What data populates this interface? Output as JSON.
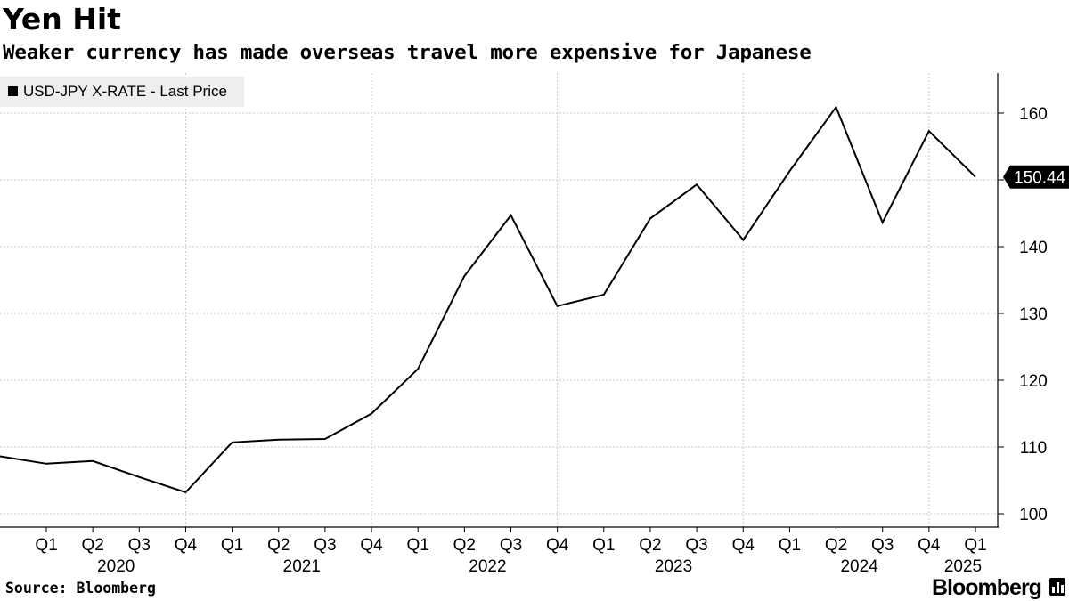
{
  "chart_data": {
    "type": "line",
    "title": "Yen Hit",
    "subtitle": "Weaker currency has made overseas travel more expensive for Japanese",
    "series": [
      {
        "name": "USD-JPY X-RATE - Last Price",
        "values": [
          108.6,
          107.5,
          107.9,
          105.5,
          103.2,
          110.7,
          111.1,
          111.2,
          115.0,
          121.7,
          135.6,
          144.7,
          131.1,
          132.8,
          144.2,
          149.3,
          141.0,
          151.3,
          160.9,
          143.6,
          157.3,
          150.44
        ],
        "color": "#000000"
      }
    ],
    "x_quarter_labels": [
      "Q1",
      "Q2",
      "Q3",
      "Q4",
      "Q1",
      "Q2",
      "Q3",
      "Q4",
      "Q1",
      "Q2",
      "Q3",
      "Q4",
      "Q1",
      "Q2",
      "Q3",
      "Q4",
      "Q1",
      "Q2",
      "Q3",
      "Q4",
      "Q1"
    ],
    "x_year_labels": [
      "2020",
      "2021",
      "2022",
      "2023",
      "2024",
      "2025"
    ],
    "ylim": [
      98,
      166
    ],
    "yticks": [
      100,
      110,
      120,
      130,
      140,
      150,
      160
    ],
    "last_value_label": "150.44",
    "xlabel": "",
    "ylabel": "",
    "grid": true,
    "legend": "top-left"
  },
  "footer": {
    "source": "Source: Bloomberg",
    "brand": "Bloomberg"
  },
  "colors": {
    "line": "#000000",
    "grid": "#c8c8c8",
    "legend_bg": "#eeeeee",
    "callout_bg": "#000000",
    "callout_text": "#ffffff"
  }
}
